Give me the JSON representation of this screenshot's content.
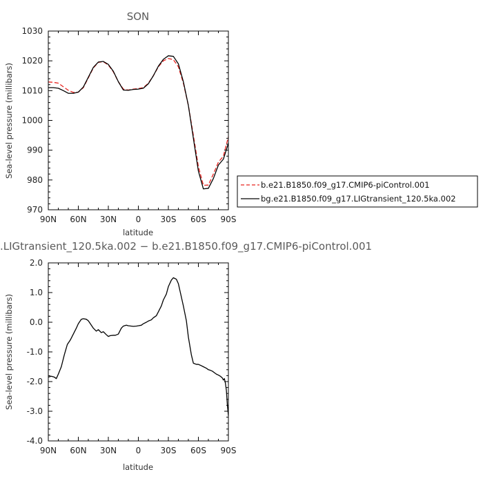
{
  "chart_data": [
    {
      "type": "line",
      "title": "SON",
      "xlabel": "latitude",
      "ylabel": "Sea-level pressure (millibars)",
      "x_ticks": [
        {
          "value": 90,
          "label": "90N"
        },
        {
          "value": 60,
          "label": "60N"
        },
        {
          "value": 30,
          "label": "30N"
        },
        {
          "value": 0,
          "label": "0"
        },
        {
          "value": -30,
          "label": "30S"
        },
        {
          "value": -60,
          "label": "60S"
        },
        {
          "value": -90,
          "label": "90S"
        }
      ],
      "xlim": [
        90,
        -90
      ],
      "ylim": [
        970,
        1030
      ],
      "y_ticks": [
        {
          "value": 970,
          "label": "970"
        },
        {
          "value": 980,
          "label": "980"
        },
        {
          "value": 990,
          "label": "990"
        },
        {
          "value": 1000,
          "label": "1000"
        },
        {
          "value": 1010,
          "label": "1010"
        },
        {
          "value": 1020,
          "label": "1020"
        },
        {
          "value": 1030,
          "label": "1030"
        }
      ],
      "legend_position": "right",
      "series": [
        {
          "name": "b.e21.B1850.f09_g17.CMIP6-piControl.001",
          "color": "#e8231f",
          "dash": "dashed",
          "x": [
            90,
            85,
            80,
            75,
            70,
            65,
            60,
            55,
            50,
            45,
            40,
            35,
            30,
            25,
            20,
            15,
            10,
            5,
            0,
            -5,
            -10,
            -15,
            -20,
            -25,
            -30,
            -35,
            -40,
            -45,
            -50,
            -55,
            -60,
            -65,
            -70,
            -75,
            -80,
            -85,
            -90
          ],
          "values": [
            1012.9,
            1012.8,
            1012.5,
            1011.3,
            1010.1,
            1009.4,
            1009.5,
            1011.0,
            1014.3,
            1017.6,
            1019.5,
            1019.7,
            1018.6,
            1016.3,
            1013.0,
            1010.5,
            1010.2,
            1010.5,
            1010.7,
            1011.0,
            1012.5,
            1015.0,
            1018.0,
            1020.0,
            1020.8,
            1020.4,
            1018.0,
            1012.5,
            1005.0,
            995.0,
            984.5,
            978.2,
            978.3,
            982.0,
            986.0,
            988.0,
            994.5
          ]
        },
        {
          "name": "bg.e21.B1850.f09_g17.LIGtransient_120.5ka.002",
          "color": "#000000",
          "dash": "solid",
          "x": [
            90,
            85,
            80,
            75,
            70,
            65,
            60,
            55,
            50,
            45,
            40,
            35,
            30,
            25,
            20,
            15,
            10,
            5,
            0,
            -5,
            -10,
            -15,
            -20,
            -25,
            -30,
            -35,
            -40,
            -45,
            -50,
            -55,
            -60,
            -65,
            -70,
            -75,
            -80,
            -85,
            -90
          ],
          "values": [
            1011.0,
            1011.0,
            1010.8,
            1010.0,
            1009.1,
            1009.1,
            1009.5,
            1011.2,
            1014.5,
            1017.8,
            1019.6,
            1019.8,
            1018.8,
            1016.5,
            1013.0,
            1010.2,
            1010.1,
            1010.4,
            1010.5,
            1010.8,
            1012.3,
            1015.0,
            1018.2,
            1020.5,
            1021.7,
            1021.5,
            1019.0,
            1013.0,
            1005.0,
            994.0,
            983.0,
            977.0,
            977.2,
            980.5,
            985.0,
            987.0,
            992.3
          ]
        }
      ]
    },
    {
      "type": "line",
      "title": ".LIGtransient_120.5ka.002 − b.e21.B1850.f09_g17.CMIP6-piControl.001",
      "xlabel": "latitude",
      "ylabel": "Sea-level pressure (millibars)",
      "x_ticks": [
        {
          "value": 90,
          "label": "90N"
        },
        {
          "value": 60,
          "label": "60N"
        },
        {
          "value": 30,
          "label": "30N"
        },
        {
          "value": 0,
          "label": "0"
        },
        {
          "value": -30,
          "label": "30S"
        },
        {
          "value": -60,
          "label": "60S"
        },
        {
          "value": -90,
          "label": "90S"
        }
      ],
      "xlim": [
        90,
        -90
      ],
      "ylim": [
        -4.0,
        2.0
      ],
      "y_ticks": [
        {
          "value": -4.0,
          "label": "-4.0"
        },
        {
          "value": -3.0,
          "label": "-3.0"
        },
        {
          "value": -2.0,
          "label": "-2.0"
        },
        {
          "value": -1.0,
          "label": "-1.0"
        },
        {
          "value": 0.0,
          "label": "0.0"
        },
        {
          "value": 1.0,
          "label": "1.0"
        },
        {
          "value": 2.0,
          "label": "2.0"
        }
      ],
      "series": [
        {
          "color": "#000000",
          "dash": "solid",
          "x": [
            90,
            87,
            84,
            82,
            80,
            77,
            74,
            71,
            68,
            65,
            62,
            60,
            57,
            55,
            52,
            50,
            48,
            45,
            42,
            40,
            37,
            35,
            32,
            30,
            28,
            25,
            23,
            20,
            17,
            15,
            12,
            10,
            7,
            5,
            2,
            0,
            -3,
            -5,
            -8,
            -10,
            -13,
            -15,
            -18,
            -20,
            -23,
            -25,
            -28,
            -30,
            -33,
            -35,
            -38,
            -40,
            -42,
            -45,
            -48,
            -50,
            -53,
            -55,
            -58,
            -60,
            -62,
            -65,
            -68,
            -70,
            -72,
            -74,
            -76,
            -78,
            -80,
            -82,
            -84,
            -85,
            -86,
            -87,
            -88,
            -89,
            -90
          ],
          "values": [
            -1.85,
            -1.82,
            -1.85,
            -1.9,
            -1.75,
            -1.5,
            -1.1,
            -0.75,
            -0.6,
            -0.4,
            -0.2,
            -0.05,
            0.1,
            0.12,
            0.1,
            0.05,
            -0.05,
            -0.2,
            -0.3,
            -0.25,
            -0.35,
            -0.32,
            -0.42,
            -0.48,
            -0.45,
            -0.44,
            -0.44,
            -0.4,
            -0.2,
            -0.13,
            -0.1,
            -0.12,
            -0.13,
            -0.14,
            -0.13,
            -0.12,
            -0.1,
            -0.05,
            0.0,
            0.04,
            0.08,
            0.15,
            0.22,
            0.35,
            0.55,
            0.75,
            0.95,
            1.2,
            1.42,
            1.5,
            1.45,
            1.3,
            1.0,
            0.55,
            0.05,
            -0.5,
            -1.1,
            -1.38,
            -1.42,
            -1.42,
            -1.45,
            -1.5,
            -1.55,
            -1.6,
            -1.62,
            -1.65,
            -1.7,
            -1.75,
            -1.78,
            -1.82,
            -1.88,
            -1.95,
            -1.9,
            -2.05,
            -2.3,
            -2.8,
            -3.15
          ]
        }
      ]
    }
  ]
}
